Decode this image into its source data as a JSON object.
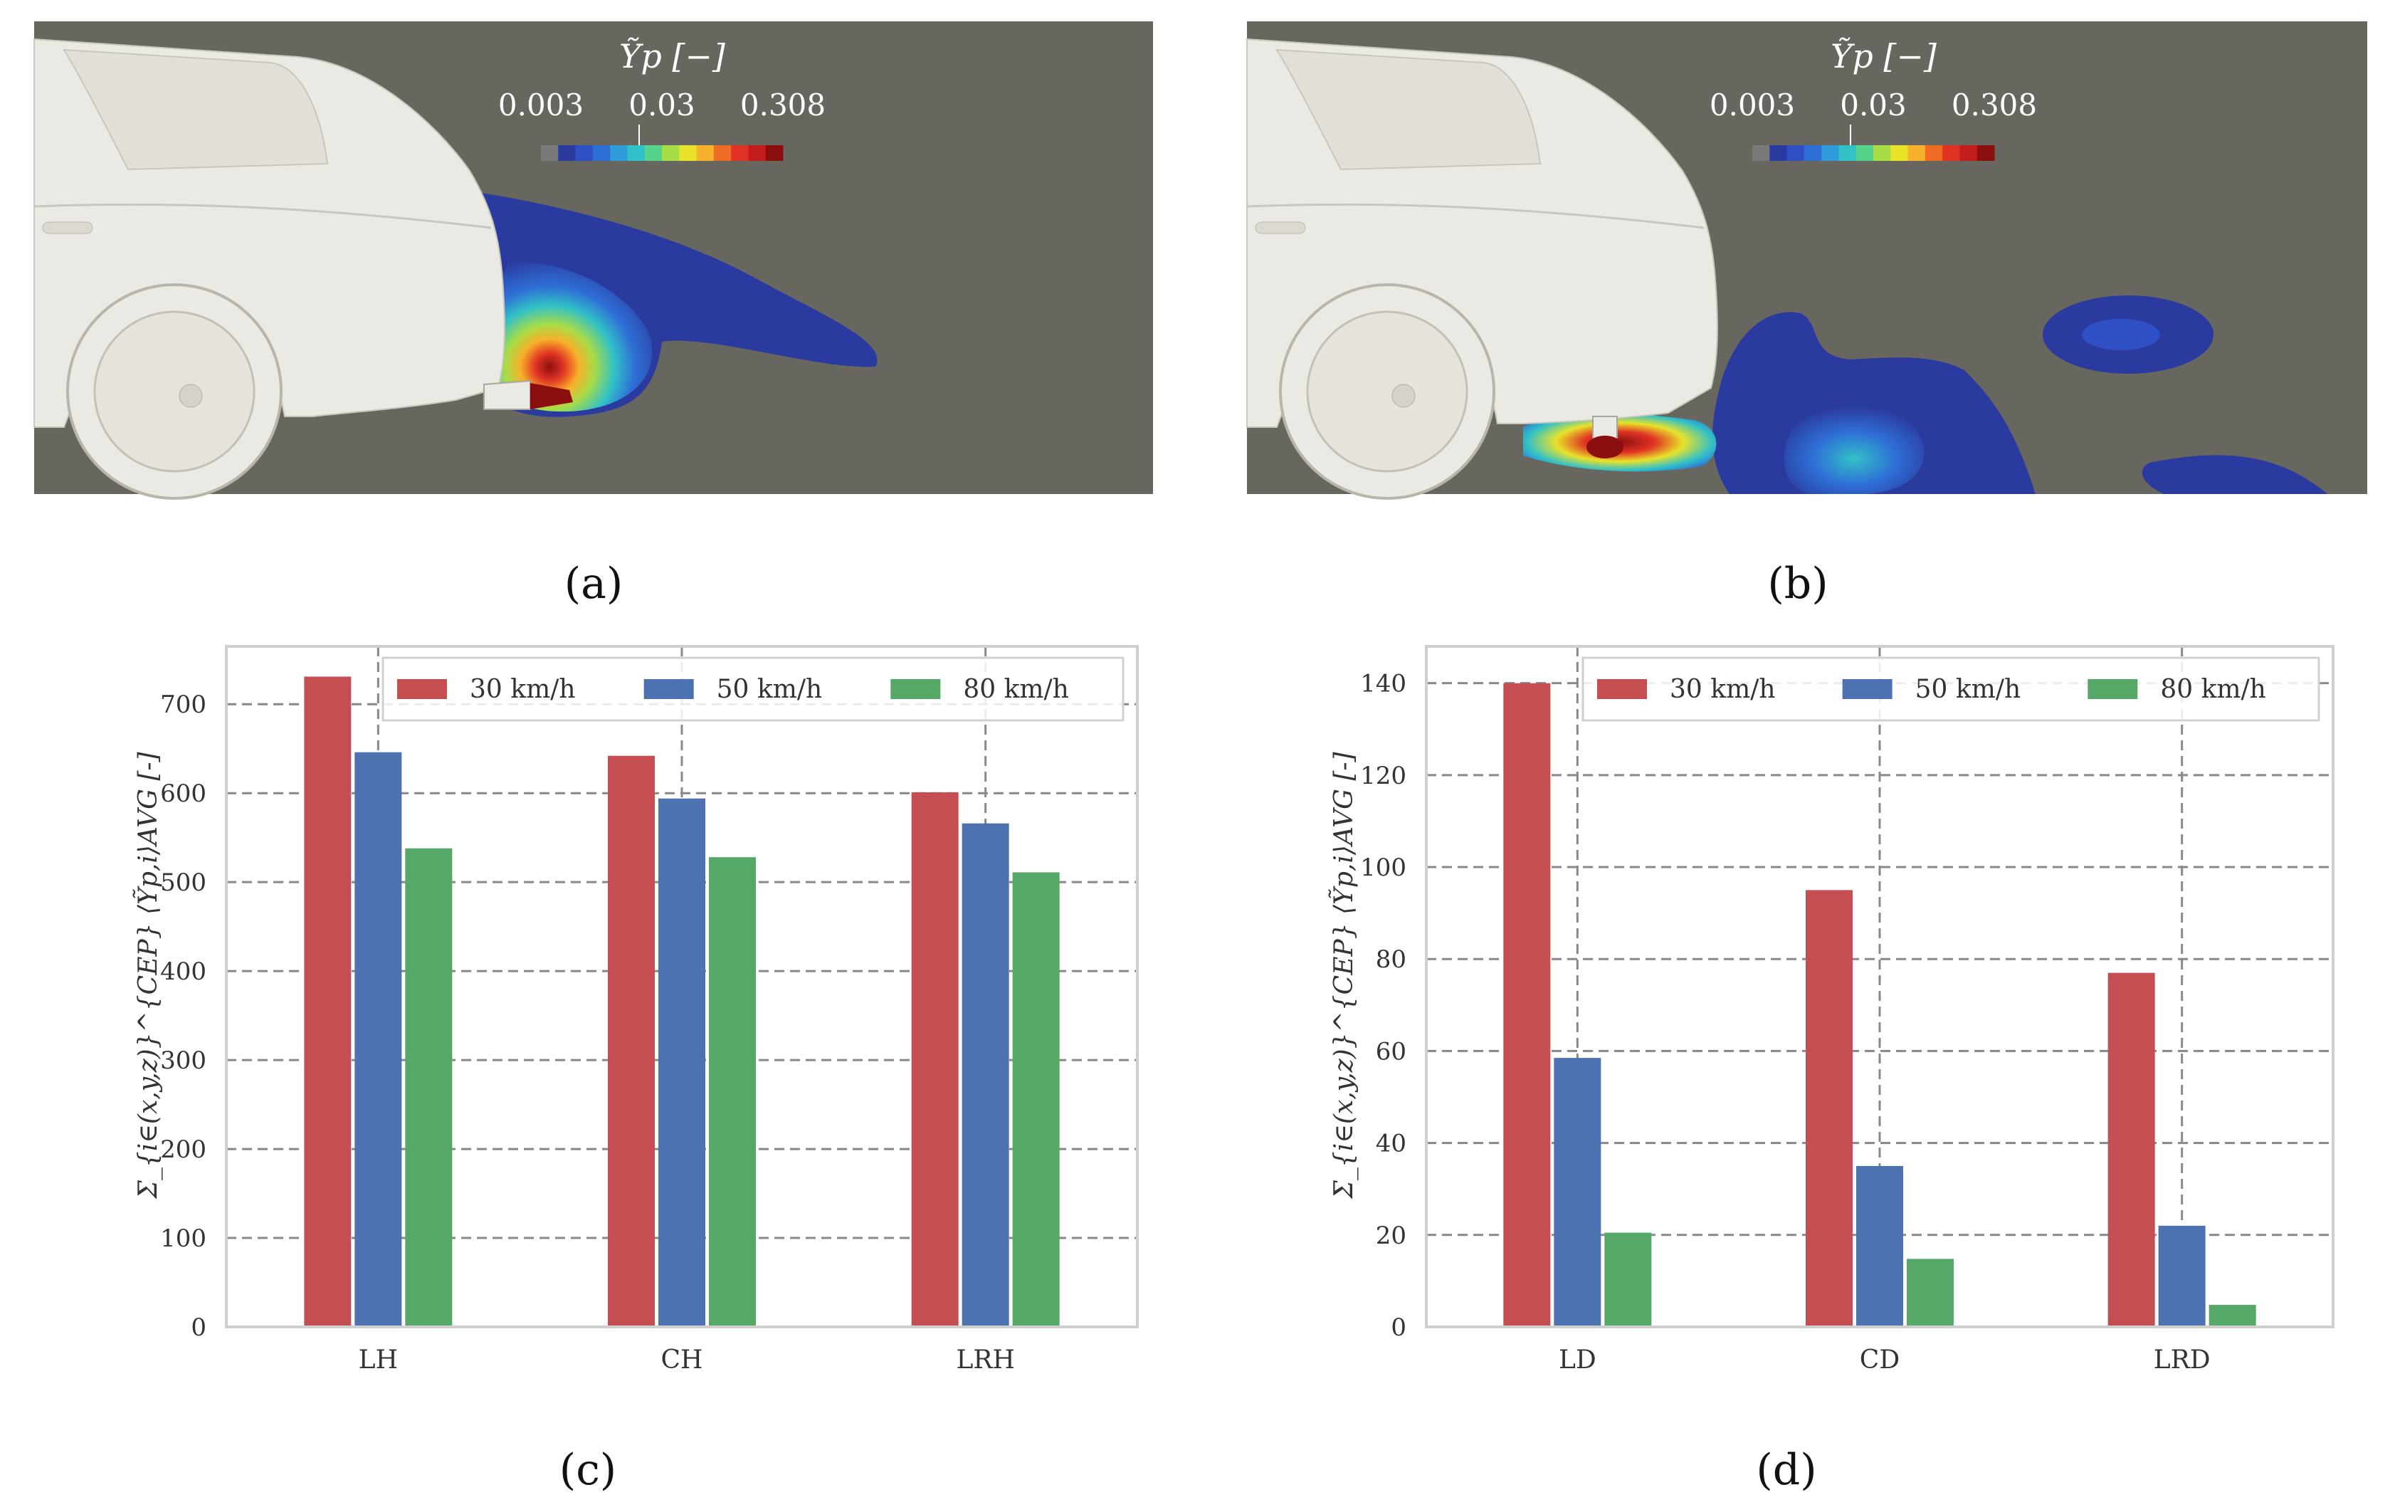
{
  "panels": {
    "a": {
      "label": "(a)"
    },
    "b": {
      "label": "(b)"
    },
    "c": {
      "label": "(c)"
    },
    "d": {
      "label": "(d)"
    }
  },
  "colorbar": {
    "title": "Ỹp [−]",
    "ticks": [
      "0.003",
      "0.03",
      "0.308"
    ],
    "colors": [
      "#7a7a7a",
      "#2b3a9e",
      "#2f4fc4",
      "#2e6fd6",
      "#2f9bd8",
      "#32c1c7",
      "#57d28a",
      "#a7dc47",
      "#e8e22a",
      "#f7b12a",
      "#f06b24",
      "#e03324",
      "#c51d1d",
      "#8b0f0f"
    ]
  },
  "colors": {
    "series_30": "#c44e52",
    "series_50": "#4c72b0",
    "series_80": "#55a868",
    "sim_background": "#68675f",
    "car_body": "#ebe9e3"
  },
  "chart_data": [
    {
      "type": "bar",
      "panel": "c",
      "categories": [
        "LH",
        "CH",
        "LRH"
      ],
      "series": [
        {
          "name": "30 km/h",
          "values": [
            731,
            642,
            601
          ]
        },
        {
          "name": "50 km/h",
          "values": [
            646,
            594,
            566
          ]
        },
        {
          "name": "80 km/h",
          "values": [
            538,
            528,
            511
          ]
        }
      ],
      "ylabel": "Σ_{i∈(x,y,z)}^{CEP} ⟨Ỹp,i⟩AVG [-]",
      "yticks": [
        "0",
        "100",
        "200",
        "300",
        "400",
        "500",
        "600",
        "700"
      ],
      "ylim": [
        0,
        765
      ],
      "legend": "top-right",
      "grid": true
    },
    {
      "type": "bar",
      "panel": "d",
      "categories": [
        "LD",
        "CD",
        "LRD"
      ],
      "series": [
        {
          "name": "30 km/h",
          "values": [
            140,
            95,
            77
          ]
        },
        {
          "name": "50 km/h",
          "values": [
            58.5,
            35,
            22
          ]
        },
        {
          "name": "80 km/h",
          "values": [
            20.5,
            14.8,
            4.8
          ]
        }
      ],
      "ylabel": "Σ_{i∈(x,y,z)}^{CEP} ⟨Ỹp,i⟩AVG [-]",
      "yticks": [
        "0",
        "20",
        "40",
        "60",
        "80",
        "100",
        "120",
        "140"
      ],
      "ylim": [
        0,
        148
      ],
      "legend": "top-right",
      "grid": true
    }
  ]
}
